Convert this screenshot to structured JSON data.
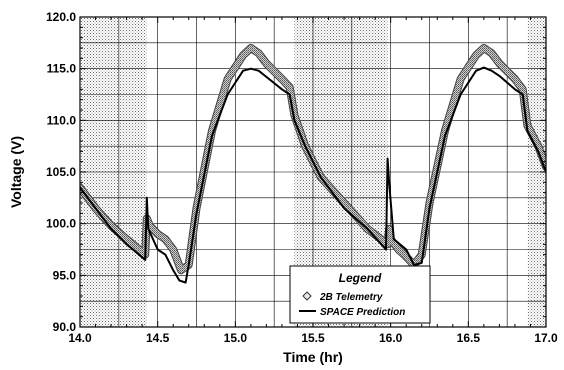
{
  "chart_data": {
    "type": "line",
    "title": "",
    "xlabel": "Time (hr)",
    "ylabel": "Voltage (V)",
    "xlim": [
      14.0,
      17.0
    ],
    "ylim": [
      90.0,
      120.0
    ],
    "x_ticks": [
      "14.0",
      "14.5",
      "15.0",
      "15.5",
      "16.0",
      "16.5",
      "17.0"
    ],
    "y_ticks": [
      "90.0",
      "95.0",
      "100.0",
      "105.0",
      "110.0",
      "115.0",
      "120.0"
    ],
    "grid": true,
    "eclipse_periods": [
      [
        14.0,
        14.43
      ],
      [
        15.38,
        15.98
      ],
      [
        16.88,
        17.0
      ]
    ],
    "legend": {
      "title": "Legend",
      "placement": "bottom-center",
      "entries": [
        {
          "label": "2B Telemetry",
          "marker": "diamond"
        },
        {
          "label": "SPACE Prediction",
          "marker": "line"
        }
      ]
    },
    "series": [
      {
        "name": "2B Telemetry",
        "style": "dotted-band",
        "x": [
          14.0,
          14.1,
          14.2,
          14.3,
          14.42,
          14.43,
          14.45,
          14.5,
          14.55,
          14.6,
          14.65,
          14.7,
          14.75,
          14.85,
          14.95,
          15.05,
          15.1,
          15.15,
          15.2,
          15.3,
          15.35,
          15.38,
          15.45,
          15.55,
          15.7,
          15.85,
          15.98,
          15.99,
          16.0,
          16.05,
          16.1,
          16.15,
          16.2,
          16.25,
          16.35,
          16.45,
          16.55,
          16.6,
          16.65,
          16.7,
          16.8,
          16.85,
          16.88,
          16.95,
          17.0
        ],
        "y": [
          103.5,
          101.5,
          99.8,
          98.5,
          97.0,
          100.5,
          99.8,
          99.0,
          98.5,
          97.5,
          95.5,
          96.0,
          101.5,
          109.0,
          114.0,
          116.3,
          117.0,
          116.5,
          115.5,
          114.0,
          113.2,
          110.5,
          107.5,
          104.5,
          102.0,
          99.5,
          98.0,
          99.5,
          98.5,
          97.5,
          96.8,
          96.0,
          97.0,
          102.0,
          109.0,
          114.0,
          116.3,
          117.0,
          116.5,
          115.5,
          114.0,
          113.0,
          109.5,
          107.5,
          105.5
        ]
      },
      {
        "name": "SPACE Prediction",
        "style": "solid",
        "x": [
          14.0,
          14.1,
          14.2,
          14.3,
          14.42,
          14.43,
          14.44,
          14.5,
          14.55,
          14.6,
          14.64,
          14.68,
          14.7,
          14.75,
          14.85,
          14.95,
          15.05,
          15.1,
          15.15,
          15.2,
          15.3,
          15.35,
          15.38,
          15.45,
          15.55,
          15.7,
          15.85,
          15.97,
          15.98,
          15.99,
          16.02,
          16.1,
          16.15,
          16.2,
          16.25,
          16.35,
          16.45,
          16.55,
          16.6,
          16.65,
          16.7,
          16.8,
          16.85,
          16.88,
          16.95,
          17.0
        ],
        "y": [
          103.5,
          101.5,
          99.5,
          98.0,
          96.5,
          102.5,
          99.5,
          97.5,
          97.0,
          95.5,
          94.5,
          94.3,
          96.0,
          101.0,
          108.5,
          112.5,
          114.8,
          115.0,
          114.8,
          114.2,
          113.0,
          112.5,
          110.0,
          107.5,
          104.5,
          101.5,
          99.5,
          97.5,
          106.3,
          104.0,
          98.5,
          97.5,
          96.0,
          96.2,
          101.5,
          108.5,
          112.5,
          114.8,
          115.1,
          114.8,
          114.3,
          113.0,
          112.5,
          109.0,
          107.0,
          105.0
        ]
      }
    ]
  }
}
